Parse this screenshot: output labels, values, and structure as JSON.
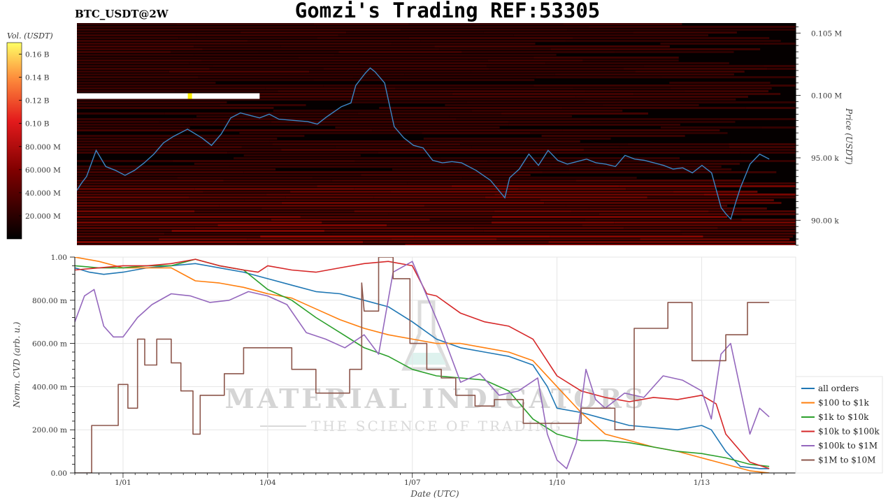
{
  "header": {
    "symbol": "BTC_USDT@2W",
    "title": "Gomzi's Trading REF:53305"
  },
  "watermark": {
    "line1": "MATERIAL INDICATORS",
    "line2": "THE SCIENCE OF TRADING"
  },
  "colors": {
    "all_orders": "#1f77b4",
    "r100_1k": "#ff7f0e",
    "r1k_10k": "#2ca02c",
    "r10k_100k": "#d62728",
    "r100k_1m": "#9467bd",
    "r1m_10m": "#8c564b",
    "price_line": "#3b86c6"
  },
  "chart_data": [
    {
      "type": "heatmap",
      "name_hint": "order book heatmap with price",
      "colorbar": {
        "label": "Vol. (USDT)",
        "ticks": [
          "0.16 B",
          "0.14 B",
          "0.12 B",
          "0.10 B",
          "80.000 M",
          "60.000 M",
          "40.000 M",
          "20.000 M"
        ],
        "tick_values": [
          0.16,
          0.14,
          0.12,
          0.1,
          0.08,
          0.06,
          0.04,
          0.02
        ],
        "range": [
          0,
          0.17
        ]
      },
      "ylabel": "Price (USDT)",
      "yticks": [
        "0.105 M",
        "0.100 M",
        "95.00 k",
        "90.00 k"
      ],
      "ytick_values": [
        105000,
        100000,
        95000,
        90000
      ],
      "ylim": [
        88000,
        105800
      ],
      "xlim": [
        0,
        14.95
      ],
      "bright_wall": {
        "price": 99950,
        "x_start": 0,
        "x_end": 3.8,
        "peak_x": 2.35
      },
      "price_series": {
        "x": [
          0,
          0.1,
          0.2,
          0.4,
          0.6,
          0.8,
          1.0,
          1.2,
          1.4,
          1.6,
          1.8,
          2.0,
          2.3,
          2.6,
          2.8,
          3.0,
          3.2,
          3.4,
          3.6,
          3.8,
          4.0,
          4.2,
          4.5,
          4.8,
          5.0,
          5.2,
          5.5,
          5.7,
          5.8,
          6.0,
          6.1,
          6.2,
          6.4,
          6.6,
          6.8,
          6.9,
          7.0,
          7.2,
          7.4,
          7.6,
          7.8,
          8.0,
          8.3,
          8.6,
          8.9,
          9.0,
          9.2,
          9.4,
          9.6,
          9.8,
          10.0,
          10.2,
          10.4,
          10.6,
          10.8,
          11.0,
          11.2,
          11.4,
          11.6,
          11.8,
          12.0,
          12.2,
          12.4,
          12.6,
          12.8,
          13.0,
          13.2,
          13.4,
          13.5,
          13.6,
          13.7,
          13.8,
          14.0,
          14.2,
          14.4
        ],
        "y": [
          92400,
          93000,
          93500,
          95600,
          94300,
          94000,
          93600,
          94000,
          94600,
          95300,
          96200,
          96700,
          97300,
          96600,
          96000,
          96900,
          98200,
          98600,
          98400,
          98200,
          98500,
          98100,
          98000,
          97900,
          97700,
          98300,
          99100,
          99400,
          100800,
          101800,
          102200,
          101900,
          101000,
          97500,
          96600,
          96300,
          96000,
          95800,
          94800,
          94600,
          94700,
          94600,
          94000,
          93200,
          91800,
          93400,
          94100,
          95300,
          94400,
          95600,
          94800,
          94500,
          94700,
          94900,
          94600,
          94500,
          94300,
          95200,
          94900,
          94800,
          94600,
          94400,
          94100,
          94200,
          93800,
          94400,
          93800,
          91000,
          90500,
          90100,
          91400,
          92600,
          94500,
          95300,
          94900
        ]
      }
    },
    {
      "type": "line",
      "xlabel": "Date (UTC)",
      "ylabel": "Norm. CVD (arb. u.)",
      "xlim": [
        0,
        14.95
      ],
      "ylim": [
        0,
        1.0
      ],
      "yticks": [
        "1.00",
        "800.00 m",
        "600.00 m",
        "400.00 m",
        "200.00 m",
        "0.00"
      ],
      "ytick_values": [
        1.0,
        0.8,
        0.6,
        0.4,
        0.2,
        0.0
      ],
      "xticks": [
        "1/01",
        "1/04",
        "1/07",
        "1/10",
        "1/13"
      ],
      "xtick_values": [
        1,
        4,
        7,
        10,
        13
      ],
      "legend_position": "right",
      "series": [
        {
          "name": "all orders",
          "color_key": "all_orders",
          "x": [
            0,
            0.3,
            0.6,
            1.0,
            1.5,
            2.0,
            2.5,
            3.0,
            3.5,
            4.0,
            4.5,
            5.0,
            5.5,
            6.0,
            6.5,
            7.0,
            7.5,
            8.0,
            8.5,
            9.0,
            9.5,
            9.8,
            10.0,
            10.5,
            11.0,
            11.5,
            12.0,
            12.5,
            13.0,
            13.2,
            13.5,
            13.8,
            14.2,
            14.4
          ],
          "y": [
            0.95,
            0.93,
            0.92,
            0.93,
            0.95,
            0.96,
            0.97,
            0.95,
            0.93,
            0.9,
            0.87,
            0.84,
            0.83,
            0.8,
            0.77,
            0.7,
            0.62,
            0.58,
            0.56,
            0.54,
            0.5,
            0.4,
            0.3,
            0.28,
            0.25,
            0.22,
            0.21,
            0.2,
            0.22,
            0.2,
            0.1,
            0.03,
            0.02,
            0.02
          ]
        },
        {
          "name": "$100 to $1k",
          "color_key": "r100_1k",
          "x": [
            0,
            0.5,
            1.0,
            1.5,
            2.0,
            2.5,
            3.0,
            3.5,
            4.0,
            4.5,
            5.0,
            5.5,
            6.0,
            6.5,
            7.0,
            7.5,
            8.0,
            8.5,
            9.0,
            9.5,
            10.0,
            10.5,
            11.0,
            11.5,
            12.0,
            12.5,
            13.0,
            13.5,
            14.0,
            14.4
          ],
          "y": [
            1.0,
            0.98,
            0.95,
            0.95,
            0.95,
            0.89,
            0.88,
            0.86,
            0.83,
            0.81,
            0.76,
            0.71,
            0.67,
            0.64,
            0.62,
            0.6,
            0.6,
            0.58,
            0.56,
            0.52,
            0.4,
            0.28,
            0.18,
            0.15,
            0.12,
            0.1,
            0.07,
            0.04,
            0.01,
            0.0
          ]
        },
        {
          "name": "$1k to $10k",
          "color_key": "r1k_10k",
          "x": [
            0,
            0.5,
            1.0,
            1.5,
            2.0,
            2.5,
            3.0,
            3.5,
            4.0,
            4.5,
            5.0,
            5.5,
            6.0,
            6.5,
            7.0,
            7.5,
            8.0,
            8.5,
            9.0,
            9.5,
            10.0,
            10.5,
            11.0,
            11.5,
            12.0,
            12.5,
            13.0,
            13.5,
            14.0,
            14.4
          ],
          "y": [
            0.96,
            0.95,
            0.95,
            0.96,
            0.96,
            0.99,
            0.96,
            0.94,
            0.85,
            0.8,
            0.72,
            0.65,
            0.58,
            0.54,
            0.48,
            0.45,
            0.44,
            0.43,
            0.38,
            0.25,
            0.18,
            0.15,
            0.15,
            0.14,
            0.12,
            0.1,
            0.09,
            0.07,
            0.04,
            0.03
          ]
        },
        {
          "name": "$10k to $100k",
          "color_key": "r10k_100k",
          "x": [
            0,
            0.5,
            1.0,
            1.5,
            2.0,
            2.5,
            3.0,
            3.5,
            3.8,
            4.0,
            4.5,
            5.0,
            5.5,
            6.0,
            6.5,
            7.0,
            7.3,
            7.5,
            8.0,
            8.5,
            9.0,
            9.5,
            10.0,
            10.5,
            11.0,
            11.5,
            12.0,
            12.5,
            13.0,
            13.3,
            13.5,
            14.0,
            14.4
          ],
          "y": [
            0.94,
            0.95,
            0.96,
            0.96,
            0.97,
            0.99,
            0.96,
            0.94,
            0.93,
            0.96,
            0.94,
            0.93,
            0.95,
            0.97,
            0.98,
            0.96,
            0.83,
            0.82,
            0.74,
            0.7,
            0.68,
            0.62,
            0.45,
            0.38,
            0.35,
            0.33,
            0.35,
            0.34,
            0.36,
            0.32,
            0.18,
            0.05,
            0.02
          ]
        },
        {
          "name": "$100k to $1M",
          "color_key": "r100k_1m",
          "x": [
            0,
            0.2,
            0.4,
            0.6,
            0.8,
            1.0,
            1.3,
            1.6,
            2.0,
            2.4,
            2.8,
            3.2,
            3.6,
            4.0,
            4.4,
            4.8,
            5.2,
            5.6,
            6.0,
            6.3,
            6.6,
            7.0,
            7.3,
            7.6,
            8.0,
            8.4,
            8.8,
            9.2,
            9.6,
            9.8,
            10.0,
            10.2,
            10.4,
            10.6,
            10.8,
            11.0,
            11.4,
            11.8,
            12.2,
            12.6,
            13.0,
            13.2,
            13.4,
            13.6,
            14.0,
            14.2,
            14.4
          ],
          "y": [
            0.7,
            0.82,
            0.85,
            0.68,
            0.63,
            0.63,
            0.72,
            0.78,
            0.83,
            0.82,
            0.79,
            0.8,
            0.84,
            0.82,
            0.78,
            0.65,
            0.62,
            0.58,
            0.64,
            0.55,
            0.93,
            0.98,
            0.82,
            0.66,
            0.42,
            0.46,
            0.36,
            0.38,
            0.44,
            0.18,
            0.06,
            0.02,
            0.14,
            0.48,
            0.34,
            0.3,
            0.37,
            0.35,
            0.45,
            0.43,
            0.38,
            0.25,
            0.55,
            0.6,
            0.18,
            0.3,
            0.26
          ]
        },
        {
          "name": "$1M to $10M",
          "color_key": "r1m_10m",
          "x": [
            0,
            0.35,
            0.35,
            0.9,
            0.9,
            1.1,
            1.1,
            1.3,
            1.3,
            1.45,
            1.45,
            1.7,
            1.7,
            2.0,
            2.0,
            2.2,
            2.2,
            2.45,
            2.45,
            2.6,
            2.6,
            2.7,
            2.7,
            3.1,
            3.1,
            3.5,
            3.5,
            3.85,
            3.85,
            4.5,
            4.5,
            5.0,
            5.0,
            5.7,
            5.7,
            5.95,
            5.95,
            6.0,
            6.3,
            6.3,
            6.6,
            6.6,
            6.95,
            6.95,
            7.3,
            7.3,
            7.6,
            7.6,
            7.9,
            7.9,
            8.3,
            8.3,
            8.7,
            8.7,
            9.3,
            9.3,
            9.8,
            9.8,
            10.5,
            10.5,
            11.2,
            11.2,
            11.6,
            11.6,
            12.3,
            12.3,
            12.8,
            12.8,
            13.5,
            13.5,
            13.75,
            13.75,
            13.95,
            13.95,
            14.0,
            14.0,
            14.4
          ],
          "y": [
            0.0,
            0.0,
            0.22,
            0.22,
            0.41,
            0.41,
            0.3,
            0.3,
            0.62,
            0.62,
            0.5,
            0.5,
            0.62,
            0.62,
            0.51,
            0.51,
            0.38,
            0.38,
            0.18,
            0.18,
            0.36,
            0.36,
            0.36,
            0.36,
            0.46,
            0.46,
            0.58,
            0.58,
            0.58,
            0.58,
            0.48,
            0.48,
            0.37,
            0.37,
            0.48,
            0.48,
            0.88,
            0.75,
            0.75,
            1.0,
            1.0,
            0.9,
            0.9,
            0.6,
            0.6,
            0.48,
            0.48,
            0.44,
            0.44,
            0.36,
            0.36,
            0.31,
            0.31,
            0.34,
            0.34,
            0.23,
            0.23,
            0.23,
            0.23,
            0.3,
            0.3,
            0.2,
            0.2,
            0.67,
            0.67,
            0.79,
            0.79,
            0.52,
            0.52,
            0.64,
            0.64,
            0.64,
            0.64,
            0.79,
            0.79,
            0.79,
            0.79
          ]
        }
      ]
    }
  ]
}
